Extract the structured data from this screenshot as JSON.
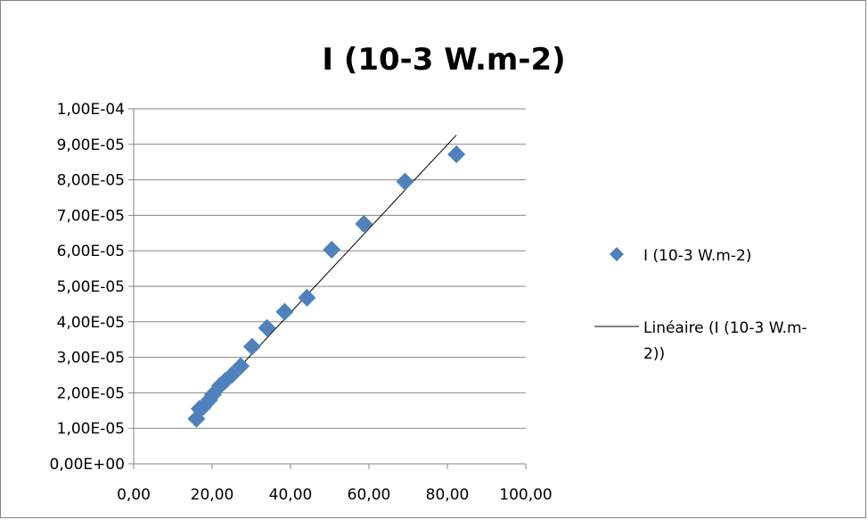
{
  "chart_data": {
    "type": "scatter",
    "title": "I (10-3 W.m-2)",
    "xlabel": "",
    "ylabel": "",
    "xlim": [
      0,
      100
    ],
    "ylim": [
      0,
      0.0001
    ],
    "x_ticks": [
      0,
      20,
      40,
      60,
      80,
      100
    ],
    "x_tick_labels": [
      "0,00",
      "20,00",
      "40,00",
      "60,00",
      "80,00",
      "100,00"
    ],
    "y_ticks": [
      0,
      1e-05,
      2e-05,
      3e-05,
      4e-05,
      5e-05,
      6e-05,
      7e-05,
      8e-05,
      9e-05,
      0.0001
    ],
    "y_tick_labels": [
      "0,00E+00",
      "1,00E-05",
      "2,00E-05",
      "3,00E-05",
      "4,00E-05",
      "5,00E-05",
      "6,00E-05",
      "7,00E-05",
      "8,00E-05",
      "9,00E-05",
      "1,00E-04"
    ],
    "grid": true,
    "legend_position": "right",
    "series": [
      {
        "name": "I (10-3 W.m-2)",
        "color": "#4F81BD",
        "marker": "diamond",
        "points": [
          [
            16.0,
            1.27e-05
          ],
          [
            16.8,
            1.55e-05
          ],
          [
            17.7,
            1.6e-05
          ],
          [
            19.3,
            1.8e-05
          ],
          [
            20.2,
            1.95e-05
          ],
          [
            22.0,
            2.2e-05
          ],
          [
            23.3,
            2.33e-05
          ],
          [
            25.0,
            2.5e-05
          ],
          [
            27.3,
            2.75e-05
          ],
          [
            30.2,
            3.3e-05
          ],
          [
            34.0,
            3.83e-05
          ],
          [
            38.5,
            4.28e-05
          ],
          [
            44.2,
            4.68e-05
          ],
          [
            50.5,
            6.03e-05
          ],
          [
            58.7,
            6.76e-05
          ],
          [
            69.2,
            7.95e-05
          ],
          [
            82.3,
            8.72e-05
          ]
        ]
      }
    ],
    "trendline": {
      "name": "Linéaire (I (10-3 W.m-2))",
      "type": "linear",
      "color": "#000000",
      "x_range": [
        16.0,
        82.3
      ],
      "y_range": [
        1.42e-05,
        9.26e-05
      ]
    }
  }
}
